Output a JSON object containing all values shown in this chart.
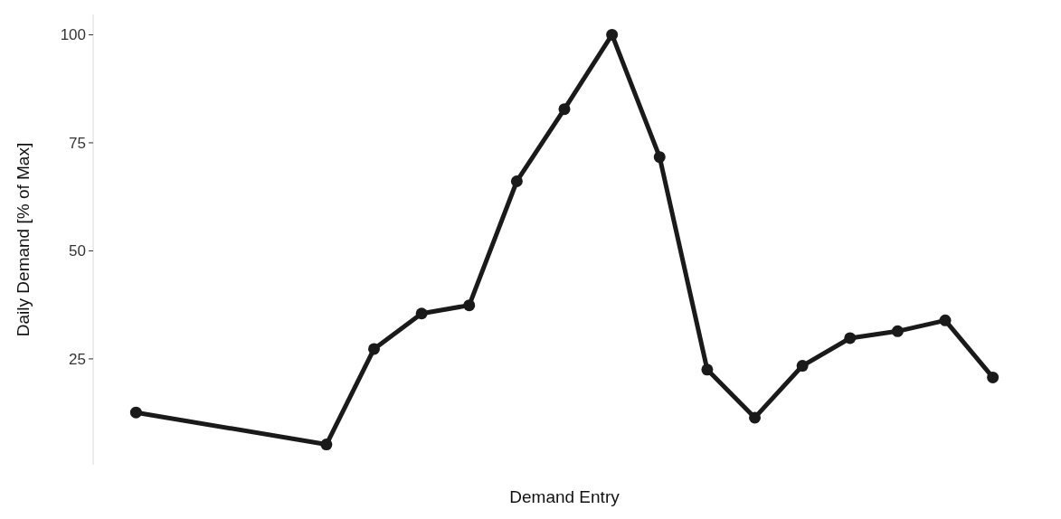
{
  "chart_data": {
    "type": "line",
    "xlabel": "Demand Entry",
    "ylabel": "Daily Demand [% of Max]",
    "categories": [
      null,
      null,
      null,
      null,
      null,
      null,
      null,
      null,
      null,
      null,
      null,
      null,
      null,
      null,
      null,
      null,
      null,
      null,
      null
    ],
    "series": [
      {
        "color": "#1a1a1a",
        "values": [
          12.6,
          null,
          null,
          null,
          5.2,
          27.3,
          35.5,
          37.4,
          66.1,
          82.8,
          100,
          71.7,
          22.5,
          11.4,
          23.4,
          29.8,
          31.4,
          33.9,
          20.7
        ]
      }
    ],
    "ylim": [
      0.5,
      104.7
    ],
    "yticks": [
      25,
      50,
      75,
      100
    ],
    "grid": false,
    "marker": "circle",
    "line_style": "solid"
  }
}
